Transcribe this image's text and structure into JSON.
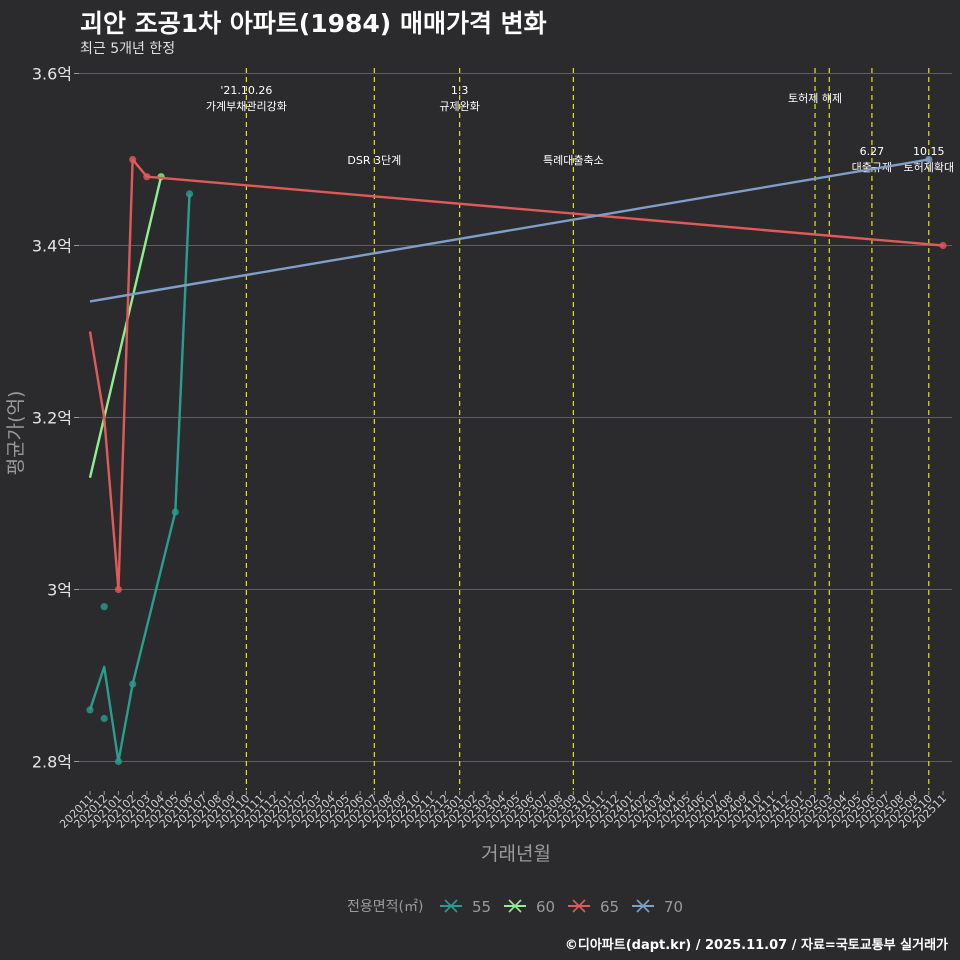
{
  "chart_data": {
    "type": "line",
    "title": "괴안 조공1차 아파트(1984) 매매가격 변화",
    "subtitle": "최근 5개년 한정",
    "xlabel": "거래년월",
    "ylabel": "평균가(억)",
    "ylim": [
      2.77,
      3.62
    ],
    "yticks": [
      2.8,
      3.0,
      3.2,
      3.4,
      3.6
    ],
    "ytick_labels": [
      "2.8억",
      "3억",
      "3.2억",
      "3.4억",
      "3.6억"
    ],
    "categories": [
      "202011",
      "202012",
      "202101",
      "202102",
      "202103",
      "202104",
      "202105",
      "202106",
      "202107",
      "202108",
      "202109",
      "202110",
      "202111",
      "202112",
      "202201",
      "202202",
      "202203",
      "202204",
      "202205",
      "202206",
      "202207",
      "202208",
      "202209",
      "202210",
      "202211",
      "202212",
      "202301",
      "202302",
      "202303",
      "202304",
      "202305",
      "202306",
      "202307",
      "202308",
      "202309",
      "202310",
      "202311",
      "202312",
      "202401",
      "202402",
      "202403",
      "202404",
      "202405",
      "202406",
      "202407",
      "202408",
      "202409",
      "202410",
      "202411",
      "202412",
      "202501",
      "202502",
      "202503",
      "202504",
      "202505",
      "202506",
      "202507",
      "202508",
      "202509",
      "202510",
      "202511"
    ],
    "legend_title": "전용면적(㎡)",
    "series": [
      {
        "name": "55",
        "color": "#2a9d8f",
        "line": [
          [
            "202011",
            2.86
          ],
          [
            "202012",
            2.91
          ],
          [
            "202101",
            2.8
          ],
          [
            "202102",
            2.89
          ],
          [
            "202105",
            3.09
          ],
          [
            "202106",
            3.46
          ]
        ],
        "points": [
          [
            "202011",
            2.86
          ],
          [
            "202012",
            2.98
          ],
          [
            "202012",
            2.85
          ],
          [
            "202101",
            2.8
          ],
          [
            "202102",
            2.89
          ],
          [
            "202105",
            3.09
          ],
          [
            "202106",
            3.46
          ]
        ]
      },
      {
        "name": "60",
        "color": "#90ee90",
        "line": [
          [
            "202011",
            3.13
          ],
          [
            "202104",
            3.48
          ]
        ],
        "points": [
          [
            "202104",
            3.48
          ]
        ]
      },
      {
        "name": "65",
        "color": "#e05a5a",
        "line": [
          [
            "202011",
            3.3
          ],
          [
            "202012",
            3.2
          ],
          [
            "202101",
            3.0
          ],
          [
            "202102",
            3.5
          ],
          [
            "202103",
            3.48
          ],
          [
            "202511",
            3.4
          ]
        ],
        "points": [
          [
            "202101",
            3.0
          ],
          [
            "202102",
            3.5
          ],
          [
            "202103",
            3.48
          ],
          [
            "202511",
            3.4
          ]
        ]
      },
      {
        "name": "70",
        "color": "#7f9fc8",
        "line": [
          [
            "202011",
            3.335
          ],
          [
            "202510",
            3.5
          ]
        ],
        "points": [
          [
            "202510",
            3.5
          ]
        ]
      }
    ],
    "events": [
      {
        "x": "202110",
        "lines": [
          "'21.10.26",
          "가계부채관리강화"
        ],
        "row": "top"
      },
      {
        "x": "202207",
        "lines": [
          "DSR 3단계"
        ],
        "row": "mid"
      },
      {
        "x": "202301",
        "lines": [
          "1.3",
          "규제완화"
        ],
        "row": "top"
      },
      {
        "x": "202309",
        "lines": [
          "특례대출축소"
        ],
        "row": "mid"
      },
      {
        "x": "202502",
        "lines": [
          "토허제 해제"
        ],
        "row": "upper"
      },
      {
        "x": "202503",
        "lines": [],
        "row": "none"
      },
      {
        "x": "202506",
        "lines": [
          "6.27",
          "대출규제"
        ],
        "row": "low"
      },
      {
        "x": "202510",
        "lines": [
          "10.15",
          "토허제확대"
        ],
        "row": "low"
      }
    ]
  },
  "caption": "©디아파트(dapt.kr) / 2025.11.07 / 자료=국토교통부 실거래가"
}
